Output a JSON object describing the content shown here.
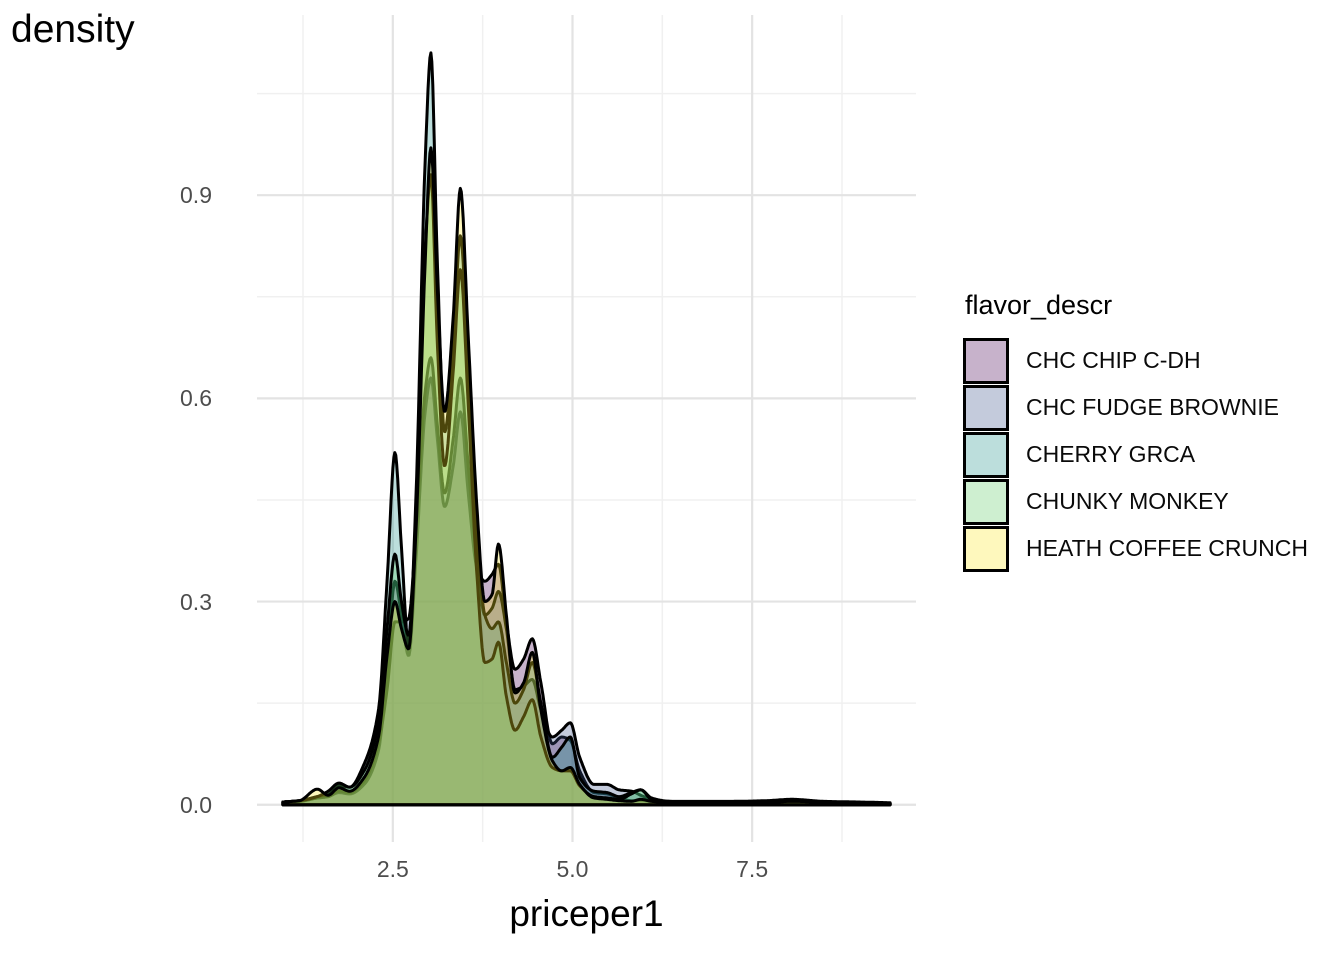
{
  "title": "density",
  "y_axis": {
    "ticks": [
      {
        "label": "0.0",
        "value": 0.0
      },
      {
        "label": "0.3",
        "value": 0.3
      },
      {
        "label": "0.6",
        "value": 0.6
      },
      {
        "label": "0.9",
        "value": 0.9
      }
    ]
  },
  "x_axis": {
    "label": "priceper1",
    "ticks": [
      {
        "label": "2.5",
        "value": 2.5
      },
      {
        "label": "5.0",
        "value": 5.0
      },
      {
        "label": "7.5",
        "value": 7.5
      }
    ]
  },
  "legend": {
    "title": "flavor_descr",
    "items": [
      {
        "label": "CHC CHIP C-DH",
        "color": "#440154"
      },
      {
        "label": "CHC FUDGE BROWNIE",
        "color": "#3B528B"
      },
      {
        "label": "CHERRY GRCA",
        "color": "#21918C"
      },
      {
        "label": "CHUNKY MONKEY",
        "color": "#5EC962"
      },
      {
        "label": "HEATH COFFEE CRUNCH",
        "color": "#FDE725"
      }
    ]
  },
  "chart_data": {
    "type": "area",
    "subtype": "overlapping-density",
    "title": "density",
    "xlabel": "priceper1",
    "ylabel": "density",
    "xlim": [
      0.61,
      9.78
    ],
    "ylim": [
      -0.055,
      1.166
    ],
    "x_major_gridlines": [
      2.5,
      5.0,
      7.5
    ],
    "x_minor_gridlines": [
      1.25,
      3.75,
      6.25,
      8.75
    ],
    "y_major_gridlines": [
      0.0,
      0.3,
      0.6,
      0.9
    ],
    "y_minor_gridlines": [
      0.15,
      0.45,
      0.75,
      1.05
    ],
    "grid": "on",
    "legend_position": "right",
    "fill_alpha": 0.3,
    "stroke_color": "#000000",
    "stroke_width": 3,
    "x": [
      0.97,
      1.2,
      1.45,
      1.6,
      1.75,
      1.9,
      2.1,
      2.3,
      2.42,
      2.53,
      2.62,
      2.72,
      2.82,
      2.95,
      3.03,
      3.12,
      3.22,
      3.34,
      3.44,
      3.55,
      3.67,
      3.78,
      3.88,
      3.97,
      4.08,
      4.2,
      4.32,
      4.44,
      4.56,
      4.72,
      4.85,
      4.97,
      5.1,
      5.3,
      5.48,
      5.65,
      5.82,
      5.95,
      6.1,
      6.35,
      6.7,
      7.2,
      7.7,
      8.05,
      8.5,
      9.0,
      9.42
    ],
    "series": [
      {
        "name": "CHC CHIP C-DH",
        "color": "#440154",
        "values": [
          0.004,
          0.005,
          0.01,
          0.012,
          0.018,
          0.016,
          0.03,
          0.08,
          0.2,
          0.33,
          0.28,
          0.22,
          0.36,
          0.58,
          0.63,
          0.54,
          0.44,
          0.5,
          0.58,
          0.46,
          0.35,
          0.33,
          0.34,
          0.355,
          0.27,
          0.2,
          0.215,
          0.245,
          0.18,
          0.09,
          0.1,
          0.095,
          0.05,
          0.018,
          0.016,
          0.01,
          0.006,
          0.006,
          0.005,
          0.004,
          0.004,
          0.004,
          0.005,
          0.006,
          0.004,
          0.003,
          0.002
        ]
      },
      {
        "name": "CHC FUDGE BROWNIE",
        "color": "#3B528B",
        "values": [
          0.004,
          0.005,
          0.01,
          0.012,
          0.02,
          0.018,
          0.035,
          0.09,
          0.17,
          0.27,
          0.27,
          0.275,
          0.4,
          0.61,
          0.66,
          0.56,
          0.46,
          0.54,
          0.63,
          0.5,
          0.36,
          0.28,
          0.29,
          0.315,
          0.26,
          0.17,
          0.175,
          0.185,
          0.14,
          0.1,
          0.11,
          0.121,
          0.07,
          0.03,
          0.03,
          0.022,
          0.02,
          0.014,
          0.008,
          0.005,
          0.005,
          0.005,
          0.006,
          0.008,
          0.005,
          0.004,
          0.003
        ]
      },
      {
        "name": "CHERRY GRCA",
        "color": "#21918C",
        "values": [
          0.004,
          0.006,
          0.012,
          0.015,
          0.028,
          0.026,
          0.06,
          0.14,
          0.33,
          0.52,
          0.38,
          0.235,
          0.45,
          0.95,
          1.11,
          0.8,
          0.55,
          0.68,
          0.84,
          0.64,
          0.4,
          0.28,
          0.26,
          0.27,
          0.21,
          0.15,
          0.17,
          0.21,
          0.15,
          0.07,
          0.085,
          0.1,
          0.04,
          0.02,
          0.018,
          0.012,
          0.018,
          0.022,
          0.01,
          0.005,
          0.004,
          0.004,
          0.005,
          0.006,
          0.004,
          0.003,
          0.002
        ]
      },
      {
        "name": "CHUNKY MONKEY",
        "color": "#5EC962",
        "values": [
          0.004,
          0.006,
          0.012,
          0.02,
          0.032,
          0.026,
          0.05,
          0.12,
          0.26,
          0.37,
          0.3,
          0.25,
          0.42,
          0.82,
          0.93,
          0.68,
          0.5,
          0.64,
          0.79,
          0.59,
          0.34,
          0.21,
          0.215,
          0.24,
          0.16,
          0.11,
          0.13,
          0.155,
          0.1,
          0.055,
          0.05,
          0.05,
          0.028,
          0.012,
          0.01,
          0.008,
          0.016,
          0.022,
          0.008,
          0.004,
          0.004,
          0.004,
          0.004,
          0.005,
          0.004,
          0.003,
          0.002
        ]
      },
      {
        "name": "HEATH COFFEE CRUNCH",
        "color": "#FDE725",
        "values": [
          0.004,
          0.006,
          0.023,
          0.014,
          0.025,
          0.02,
          0.04,
          0.1,
          0.22,
          0.3,
          0.26,
          0.23,
          0.4,
          0.8,
          0.97,
          0.76,
          0.58,
          0.72,
          0.91,
          0.69,
          0.44,
          0.3,
          0.31,
          0.385,
          0.28,
          0.165,
          0.18,
          0.225,
          0.14,
          0.065,
          0.05,
          0.055,
          0.03,
          0.01,
          0.008,
          0.006,
          0.005,
          0.008,
          0.005,
          0.004,
          0.004,
          0.004,
          0.004,
          0.005,
          0.004,
          0.003,
          0.002
        ]
      }
    ]
  }
}
